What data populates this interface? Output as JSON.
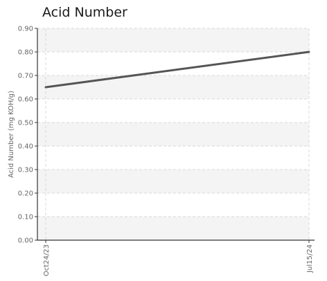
{
  "chart_data": {
    "type": "line",
    "title": "Acid Number",
    "xlabel": "",
    "ylabel": "Acid Number (mg KOH/g)",
    "categories": [
      "Oct24/23",
      "Jul15/24"
    ],
    "series": [
      {
        "values": [
          0.65,
          0.8
        ]
      }
    ],
    "ylim": [
      0,
      0.9
    ],
    "yticks": [
      "0.00",
      "0.10",
      "0.20",
      "0.30",
      "0.40",
      "0.50",
      "0.60",
      "0.70",
      "0.80",
      "0.90"
    ],
    "grid": true,
    "legend": "none"
  },
  "colors": {
    "line": "#555555",
    "band": "#f4f4f4",
    "grid": "#d9d9d9",
    "axis": "#333333"
  }
}
